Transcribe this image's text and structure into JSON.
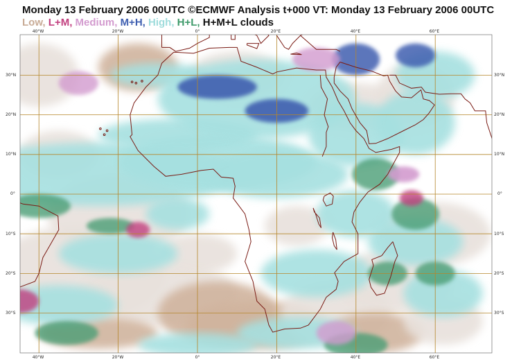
{
  "title": "Monday 13 February 2006 00UTC ©ECMWF Analysis t+000 VT: Monday 13 February 2006 00UTC",
  "legend": [
    {
      "label": "Low,",
      "color": "#c8ab96"
    },
    {
      "label": "L+M,",
      "color": "#c23f7f"
    },
    {
      "label": "Medium,",
      "color": "#d39bcf"
    },
    {
      "label": "M+H,",
      "color": "#3f5fb0"
    },
    {
      "label": "High,",
      "color": "#9fdcdc"
    },
    {
      "label": "H+L,",
      "color": "#3e9a6a"
    },
    {
      "label": "H+M+L clouds",
      "color": "#111111"
    }
  ],
  "map": {
    "type": "cloud-cover-map",
    "region": "Africa",
    "lon_labels": [
      "40°W",
      "20°W",
      "0°",
      "20°E",
      "40°E",
      "60°E"
    ],
    "lat_labels": [
      "30°N",
      "20°N",
      "10°N",
      "0°",
      "10°S",
      "20°S",
      "30°S"
    ],
    "colors": {
      "background": "#ffffff",
      "grid": "#b5862a",
      "coast": "#7a1b14",
      "low": "#e8e1dc",
      "low_dark": "#d0b49e",
      "lm": "#c23f7f",
      "medium": "#d39bcf",
      "mh": "#3f5fb0",
      "high": "#a6e0e0",
      "hl": "#4b9e76"
    }
  }
}
